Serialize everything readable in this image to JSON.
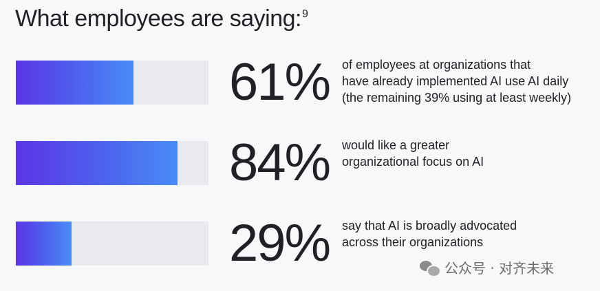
{
  "title": "What employees are saying:",
  "title_footnote": "9",
  "chart_data": {
    "type": "bar",
    "title": "What employees are saying:",
    "xlim": [
      0,
      100
    ],
    "items": [
      {
        "value": 61,
        "label": "61%",
        "description": [
          "of employees at organizations that",
          "have already implemented AI use AI daily",
          "(the remaining 39% using at least weekly)"
        ]
      },
      {
        "value": 84,
        "label": "84%",
        "description": [
          "would like a greater",
          "organizational focus on AI"
        ]
      },
      {
        "value": 29,
        "label": "29%",
        "description": [
          "say that AI is broadly advocated",
          "across their organizations"
        ]
      }
    ],
    "colors": {
      "gradient_start": "#5b35e6",
      "gradient_end": "#4a8cf7",
      "track": "#e8eaed"
    }
  },
  "watermark": {
    "text": "公众号 · 对齐未来",
    "icon": "wechat-icon"
  }
}
